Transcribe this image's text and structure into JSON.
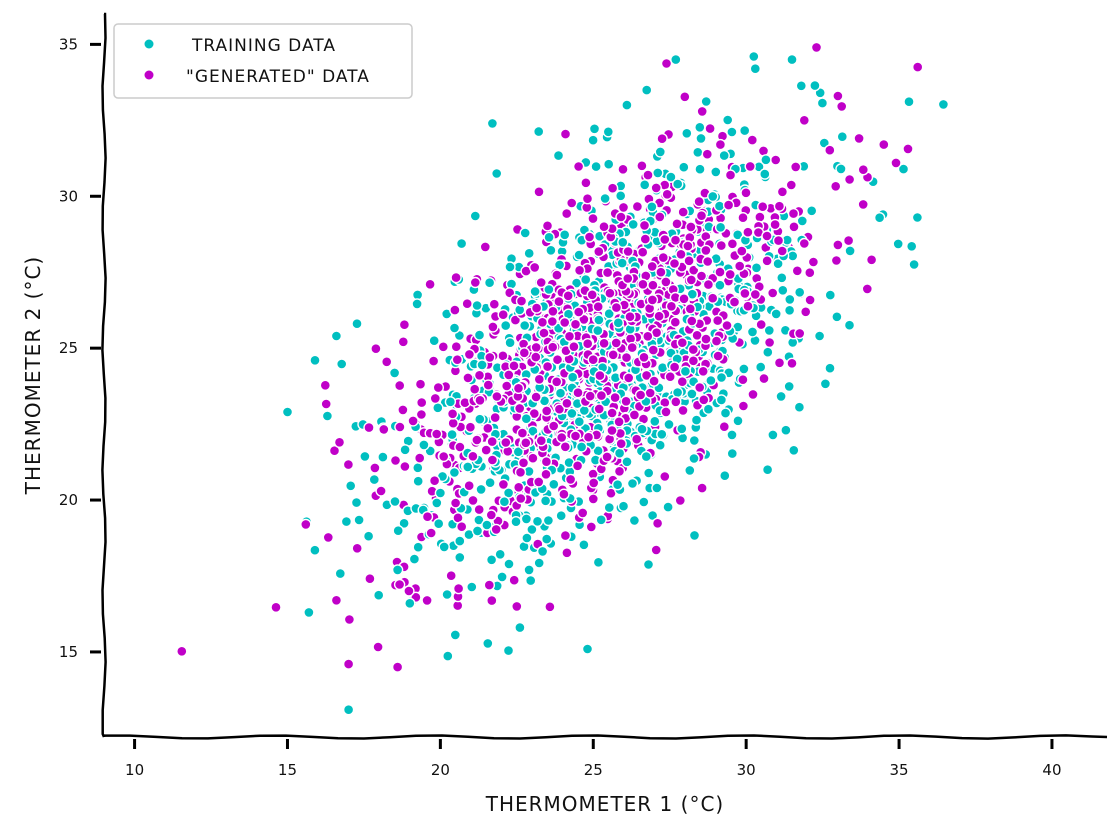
{
  "chart_data": {
    "type": "scatter",
    "title": "",
    "xlabel": "THERMOMETER 1 (°C)",
    "ylabel": "THERMOMETER 2 (°C)",
    "xlim": [
      9,
      41.8
    ],
    "ylim": [
      12.2,
      36
    ],
    "xticks": [
      10,
      15,
      20,
      25,
      30,
      35,
      40
    ],
    "yticks": [
      15,
      20,
      25,
      30,
      35
    ],
    "grid": false,
    "legend_position": "top-left",
    "series": [
      {
        "name": "TRAINING DATA",
        "color": "#00bfc0",
        "approx_count": 1000,
        "distribution": {
          "mean": [
            25.5,
            24.8
          ],
          "std": [
            3.4,
            3.4
          ],
          "corr": 0.55
        },
        "outliers": [
          [
            17.0,
            13.1
          ],
          [
            15.0,
            22.9
          ],
          [
            15.9,
            24.6
          ],
          [
            16.6,
            25.4
          ],
          [
            35.6,
            29.3
          ],
          [
            27.7,
            34.5
          ],
          [
            31.5,
            34.5
          ],
          [
            30.3,
            34.2
          ],
          [
            21.7,
            32.4
          ],
          [
            22.6,
            15.8
          ],
          [
            15.7,
            16.3
          ],
          [
            33.4,
            28.2
          ],
          [
            33.1,
            30.9
          ],
          [
            32.4,
            25.4
          ],
          [
            31.3,
            22.3
          ],
          [
            30.7,
            21.0
          ],
          [
            29.3,
            20.8
          ],
          [
            18.6,
            17.7
          ],
          [
            19.0,
            16.6
          ],
          [
            26.1,
            33.0
          ]
        ]
      },
      {
        "name": "\"GENERATED\" DATA",
        "color": "#c000c8",
        "approx_count": 1000,
        "distribution": {
          "mean": [
            25.2,
            24.9
          ],
          "std": [
            3.3,
            3.1
          ],
          "corr": 0.6
        },
        "outliers": [
          [
            17.0,
            14.6
          ],
          [
            18.6,
            14.5
          ],
          [
            16.6,
            16.7
          ],
          [
            15.6,
            19.2
          ],
          [
            32.3,
            34.9
          ],
          [
            33.0,
            33.3
          ],
          [
            34.9,
            31.1
          ],
          [
            34.5,
            31.7
          ],
          [
            31.9,
            32.5
          ],
          [
            33.0,
            28.4
          ],
          [
            31.5,
            24.5
          ],
          [
            22.5,
            16.5
          ],
          [
            21.6,
            17.2
          ],
          [
            19.2,
            16.8
          ],
          [
            16.7,
            21.9
          ]
        ]
      }
    ]
  }
}
